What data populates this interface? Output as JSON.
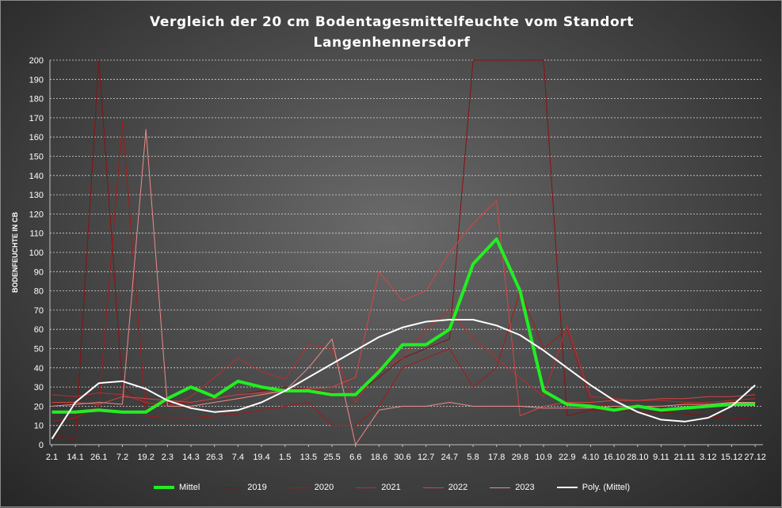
{
  "chart_data": {
    "type": "line",
    "title": "Vergleich der 20 cm Bodentagesmittelfeuchte vom Standort",
    "subtitle": "Langenhennersdorf",
    "ylabel": "BODENFEUCHTE IN CB",
    "xlabel": "",
    "ylim": [
      0,
      200
    ],
    "yticks": [
      0,
      10,
      20,
      30,
      40,
      50,
      60,
      70,
      80,
      90,
      100,
      110,
      120,
      130,
      140,
      150,
      160,
      170,
      180,
      190,
      200
    ],
    "grid": true,
    "legend": "bottom",
    "x_tick_labels": [
      "2.1",
      "14.1",
      "26.1",
      "7.2",
      "19.2",
      "2.3",
      "14.3",
      "26.3",
      "7.4",
      "19.4",
      "1.5",
      "13.5",
      "25.5",
      "6.6",
      "18.6",
      "30.6",
      "12.7",
      "24.7",
      "5.8",
      "17.8",
      "29.8",
      "10.9",
      "22.9",
      "4.10",
      "16.10",
      "28.10",
      "9.11",
      "21.11",
      "3.12",
      "15.12",
      "27.12"
    ],
    "x": [
      2,
      14,
      26,
      38,
      50,
      61,
      73,
      85,
      97,
      109,
      121,
      133,
      145,
      157,
      169,
      181,
      193,
      205,
      217,
      229,
      241,
      253,
      265,
      277,
      289,
      301,
      313,
      325,
      337,
      349,
      361
    ],
    "series": [
      {
        "name": "Mittel",
        "color": "#22ee22",
        "values": [
          17,
          17,
          18,
          17,
          17,
          24,
          30,
          25,
          33,
          30,
          28,
          28,
          26,
          26,
          38,
          52,
          52,
          60,
          94,
          107,
          80,
          28,
          21,
          20,
          18,
          20,
          18,
          19,
          20,
          21,
          21
        ]
      },
      {
        "name": "2019",
        "color": "#8a1010",
        "values": [
          5,
          3,
          200,
          30,
          20,
          22,
          22,
          24,
          26,
          28,
          30,
          29,
          27,
          26,
          35,
          45,
          50,
          55,
          200,
          200,
          200,
          200,
          15,
          18,
          18,
          17,
          17,
          16,
          15,
          14,
          13
        ]
      },
      {
        "name": "2020",
        "color": "#a81818",
        "values": [
          12,
          14,
          20,
          168,
          15,
          14,
          14,
          15,
          16,
          18,
          20,
          22,
          10,
          10,
          20,
          40,
          45,
          50,
          30,
          40,
          80,
          50,
          60,
          22,
          20,
          20,
          20,
          21,
          20,
          21,
          22
        ]
      },
      {
        "name": "2021",
        "color": "#c22a2a",
        "values": [
          26,
          25,
          27,
          26,
          22,
          20,
          25,
          35,
          45,
          38,
          34,
          52,
          50,
          22,
          40,
          45,
          60,
          70,
          55,
          45,
          35,
          25,
          62,
          25,
          24,
          23,
          23,
          22,
          22,
          23,
          24
        ]
      },
      {
        "name": "2022",
        "color": "#d84444",
        "values": [
          22,
          22,
          21,
          25,
          24,
          23,
          22,
          24,
          26,
          27,
          28,
          29,
          30,
          35,
          90,
          75,
          80,
          100,
          115,
          127,
          15,
          20,
          22,
          22,
          23,
          23,
          24,
          24,
          25,
          25,
          26
        ]
      },
      {
        "name": "2023",
        "color": "#f08a8a",
        "values": [
          20,
          21,
          22,
          21,
          164,
          20,
          20,
          22,
          24,
          26,
          28,
          40,
          55,
          0,
          18,
          20,
          20,
          22,
          20,
          20,
          20,
          19,
          19,
          19,
          20,
          20,
          20,
          21,
          21,
          22,
          22
        ]
      },
      {
        "name": "Poly. (Mittel)",
        "color": "#ffffff",
        "values": [
          3,
          22,
          32,
          33,
          29,
          23,
          19,
          17,
          18,
          22,
          28,
          35,
          42,
          49,
          56,
          61,
          64,
          65,
          65,
          62,
          57,
          49,
          40,
          31,
          23,
          17,
          13,
          12,
          14,
          20,
          31
        ]
      }
    ]
  }
}
